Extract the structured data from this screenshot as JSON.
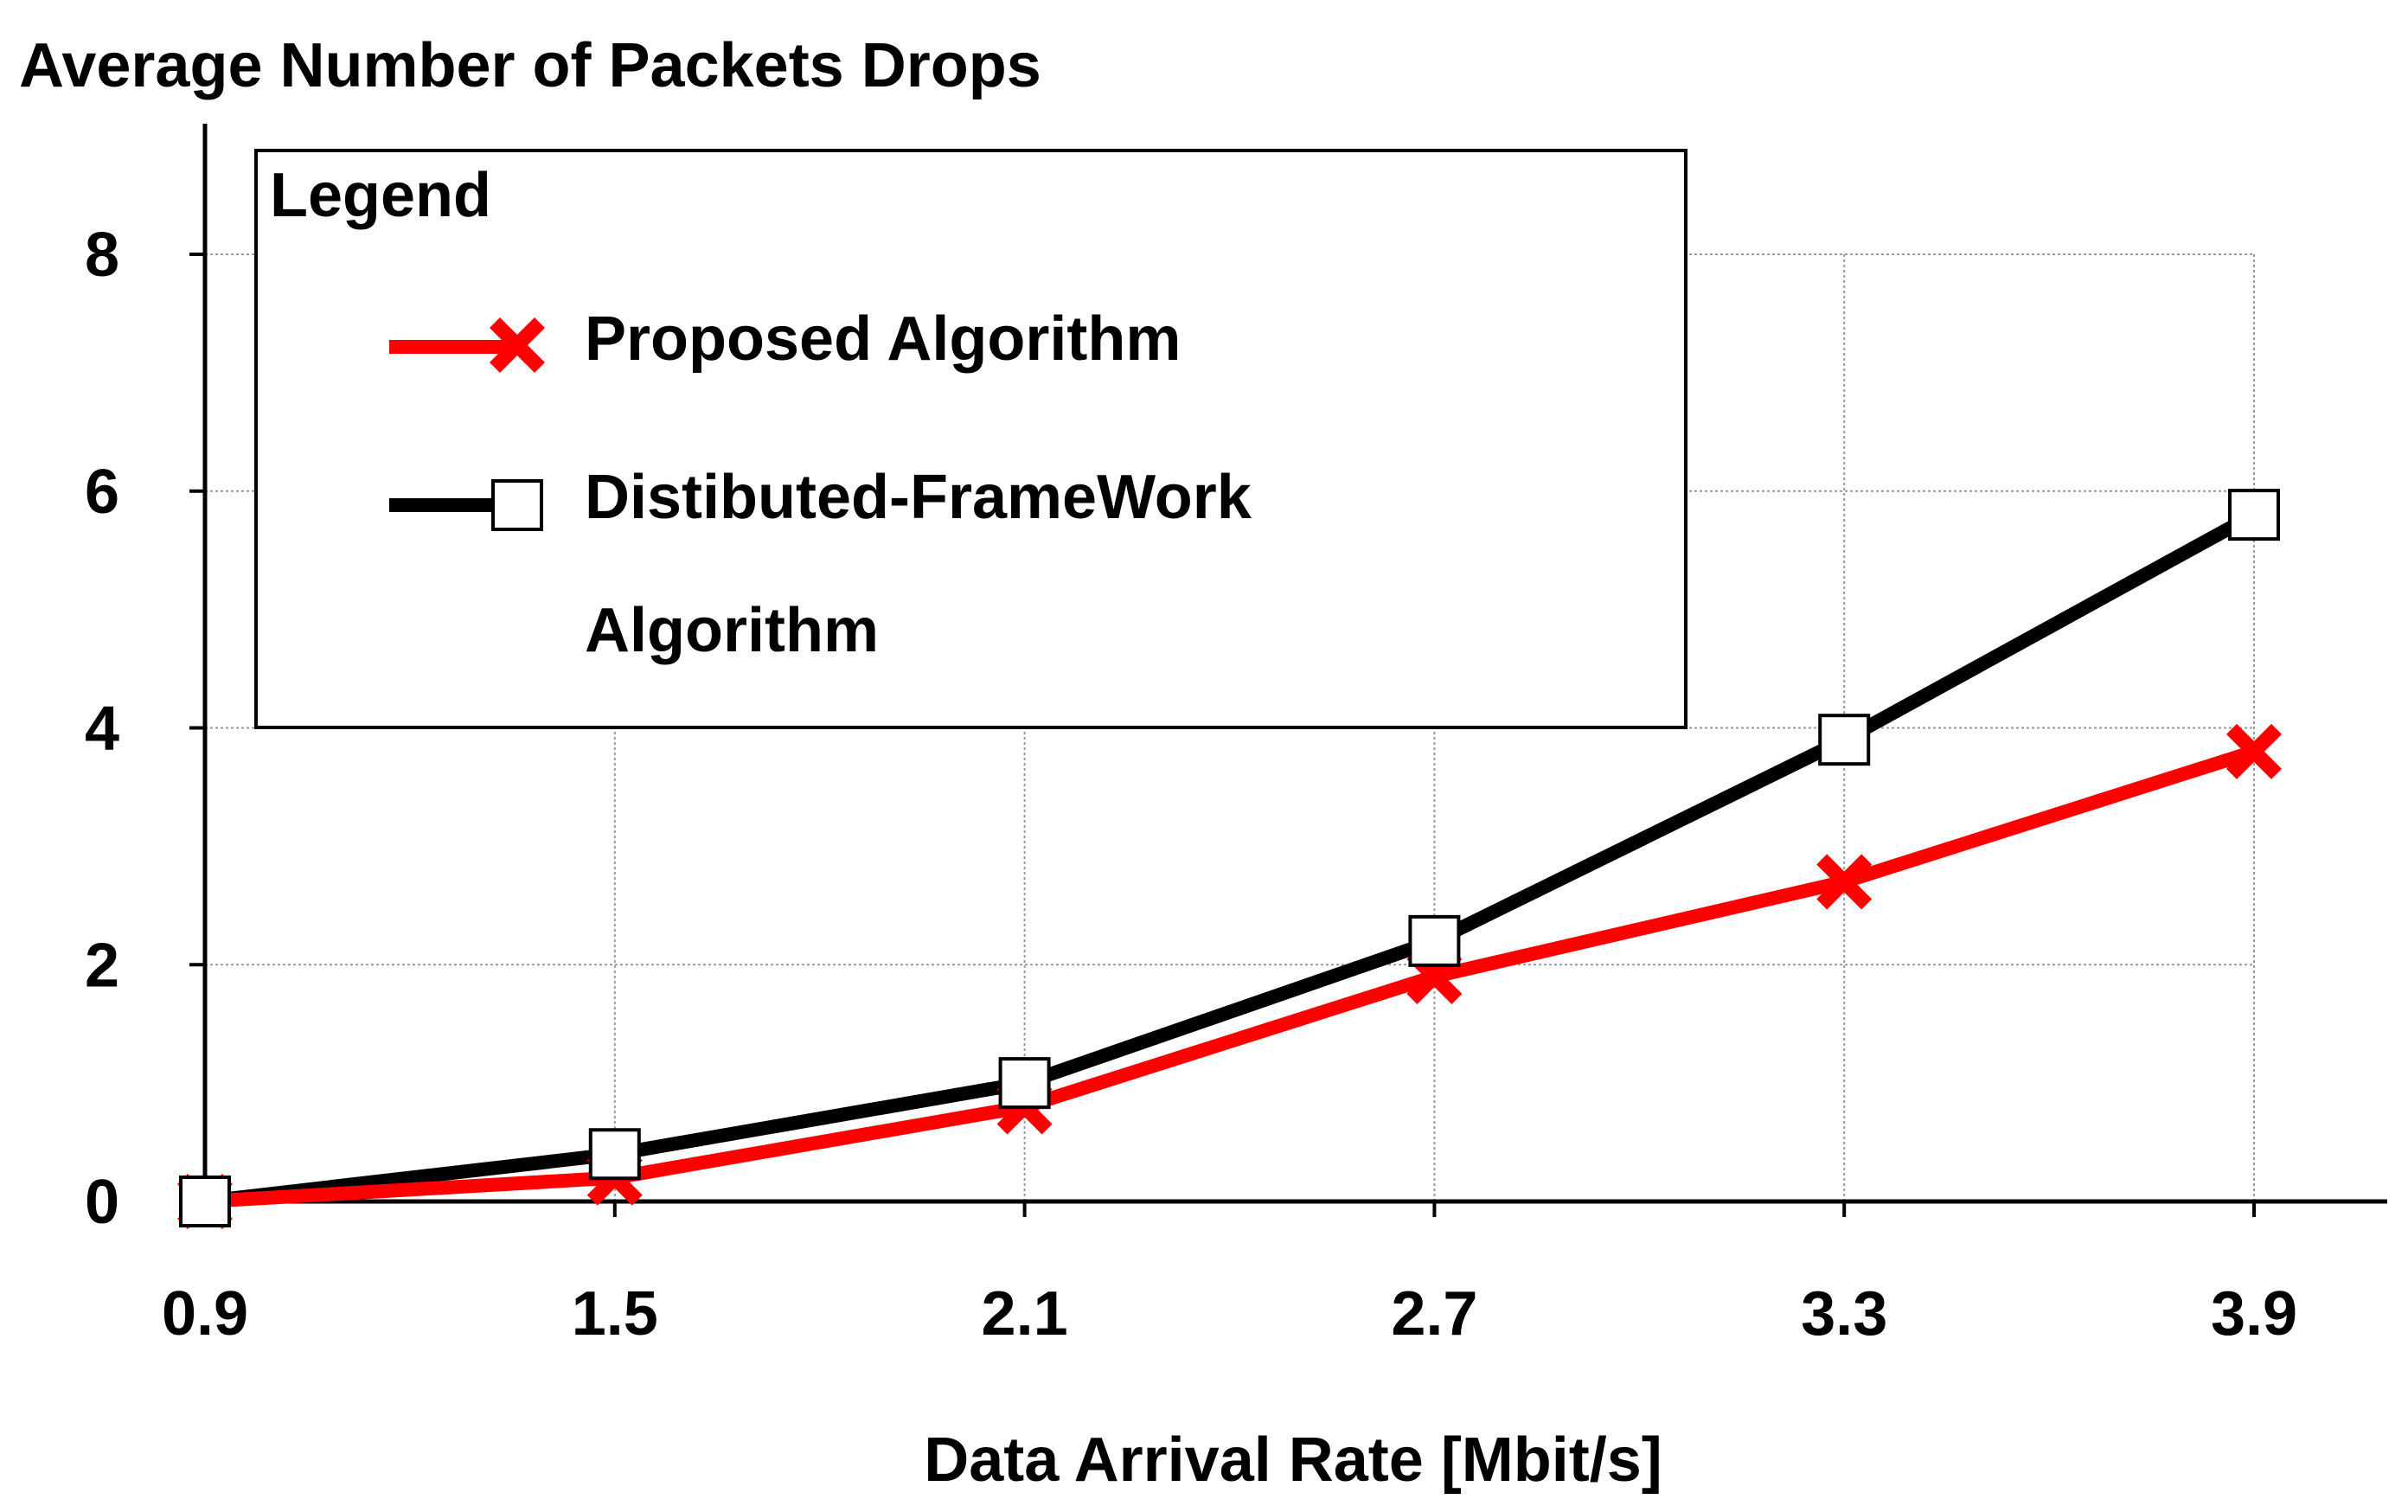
{
  "chart_data": {
    "type": "line",
    "ylabel": "Average Number of Packets Drops",
    "xlabel": "Data Arrival Rate [Mbit/s]",
    "x": [
      0.9,
      1.5,
      2.1,
      2.7,
      3.3,
      3.9
    ],
    "x_tick_labels": [
      "0.9",
      "1.5",
      "2.1",
      "2.7",
      "3.3",
      "3.9"
    ],
    "y_ticks": [
      0,
      2,
      4,
      6,
      8
    ],
    "y_tick_labels": [
      "0",
      "2",
      "4",
      "6",
      "8"
    ],
    "xlim": [
      0.9,
      4.1
    ],
    "ylim": [
      0,
      9.2
    ],
    "grid": true,
    "legend": {
      "title": "Legend",
      "position": "top-left",
      "entries": [
        {
          "lines": [
            "Proposed Algorithm"
          ]
        },
        {
          "lines": [
            "Distibuted-FrameWork",
            "Algorithm"
          ]
        }
      ]
    },
    "series": [
      {
        "name": "Proposed Algorithm",
        "color": "#ff0000",
        "marker": "x",
        "values": [
          0,
          0.2,
          0.8,
          1.9,
          2.7,
          3.8
        ]
      },
      {
        "name": "Distibuted-FrameWork Algorithm",
        "color": "#000000",
        "marker": "square",
        "values": [
          0,
          0.4,
          1.0,
          2.2,
          3.9,
          5.8
        ]
      }
    ]
  }
}
